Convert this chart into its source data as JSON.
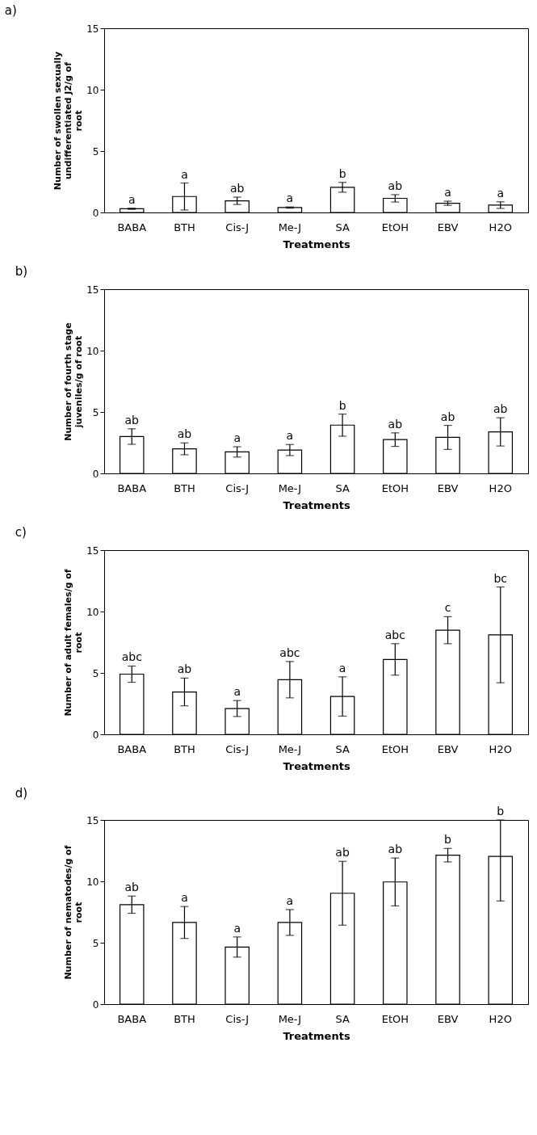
{
  "chart_data": [
    {
      "type": "bar",
      "title": "a)",
      "xlabel": "Treatments",
      "ylabel": "Number of swollen sexually undifferentiated J2/g of root",
      "categories": [
        "BABA",
        "BTH",
        "Cis-J",
        "Me-J",
        "SA",
        "EtOH",
        "EBV",
        "H2O"
      ],
      "values": [
        0.3,
        1.3,
        0.95,
        0.4,
        2.05,
        1.15,
        0.75,
        0.6
      ],
      "errors": [
        0.05,
        1.1,
        0.3,
        0.05,
        0.4,
        0.3,
        0.17,
        0.27
      ],
      "color": "#ffffff",
      "ylim": [
        0,
        15
      ],
      "yticks": [
        0,
        5,
        10,
        15
      ],
      "grid": false,
      "annotations": [
        "a",
        "a",
        "ab",
        "a",
        "b",
        "ab",
        "a",
        "a"
      ]
    },
    {
      "type": "bar",
      "title": "b)",
      "xlabel": "Treatments",
      "ylabel": "Number of fourth stage juveniles/g of root",
      "categories": [
        "BABA",
        "BTH",
        "Cis-J",
        "Me-J",
        "SA",
        "EtOH",
        "EBV",
        "H2O"
      ],
      "values": [
        3.0,
        2.0,
        1.75,
        1.9,
        3.93,
        2.75,
        2.93,
        3.38
      ],
      "errors": [
        0.63,
        0.48,
        0.42,
        0.45,
        0.9,
        0.55,
        0.98,
        1.15
      ],
      "color": "#ffffff",
      "ylim": [
        0,
        15
      ],
      "yticks": [
        0,
        5,
        10,
        15
      ],
      "grid": false,
      "annotations": [
        "ab",
        "ab",
        "a",
        "a",
        "b",
        "ab",
        "ab",
        "ab"
      ]
    },
    {
      "type": "bar",
      "title": "c)",
      "xlabel": "Treatments",
      "ylabel": "Number of adult females/g of root",
      "categories": [
        "BABA",
        "BTH",
        "Cis-J",
        "Me-J",
        "SA",
        "EtOH",
        "EBV",
        "H2O"
      ],
      "values": [
        4.9,
        3.45,
        2.1,
        4.45,
        3.08,
        6.1,
        8.48,
        8.1
      ],
      "errors": [
        0.66,
        1.13,
        0.65,
        1.48,
        1.6,
        1.28,
        1.1,
        3.9
      ],
      "color": "#ffffff",
      "ylim": [
        0,
        15
      ],
      "yticks": [
        0,
        5,
        10,
        15
      ],
      "grid": false,
      "annotations": [
        "abc",
        "ab",
        "a",
        "abc",
        "a",
        "abc",
        "c",
        "bc"
      ]
    },
    {
      "type": "bar",
      "title": "d)",
      "xlabel": "Treatments",
      "ylabel": "Number of nematodes/g of root",
      "categories": [
        "BABA",
        "BTH",
        "Cis-J",
        "Me-J",
        "SA",
        "EtOH",
        "EBV",
        "H2O"
      ],
      "values": [
        8.1,
        6.65,
        4.65,
        6.65,
        9.03,
        9.95,
        12.13,
        12.03
      ],
      "errors": [
        0.7,
        1.3,
        0.82,
        1.05,
        2.6,
        1.95,
        0.55,
        [
          8.4,
          15
        ]
      ],
      "color": "#ffffff",
      "ylim": [
        0,
        15
      ],
      "yticks": [
        0,
        5,
        10,
        15
      ],
      "grid": false,
      "annotations": [
        "ab",
        "a",
        "a",
        "a",
        "ab",
        "ab",
        "b",
        "b"
      ]
    }
  ]
}
